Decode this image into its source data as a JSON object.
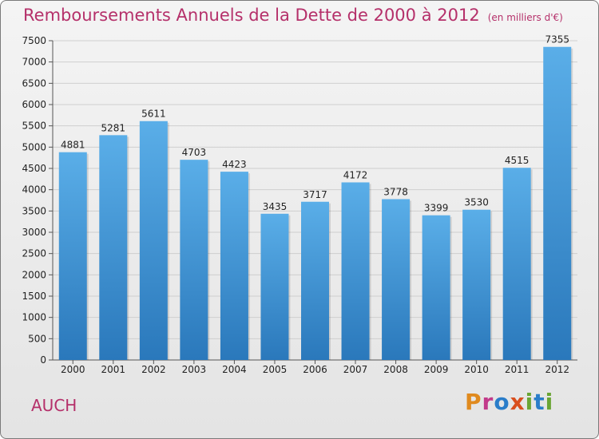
{
  "header": {
    "title": "Remboursements Annuels de la Dette de 2000 à 2012",
    "unit": "(en milliers d'€)"
  },
  "footer": {
    "city": "AUCH",
    "brand": "Proxiti",
    "brand_colors": [
      "#e08a1e",
      "#c23a8a",
      "#2a7dc9",
      "#d94f1e",
      "#6aa534",
      "#2a7dc9",
      "#6aa534"
    ]
  },
  "colors": {
    "bar_top": "#5aaee8",
    "bar_bottom": "#2a78bb",
    "title": "#b5306a"
  },
  "chart_data": {
    "type": "bar",
    "categories": [
      "2000",
      "2001",
      "2002",
      "2003",
      "2004",
      "2005",
      "2006",
      "2007",
      "2008",
      "2009",
      "2010",
      "2011",
      "2012"
    ],
    "values": [
      4881,
      5281,
      5611,
      4703,
      4423,
      3435,
      3717,
      4172,
      3778,
      3399,
      3530,
      4515,
      7355
    ],
    "ylim": [
      0,
      7500
    ],
    "yticks": [
      0,
      500,
      1000,
      1500,
      2000,
      2500,
      3000,
      3500,
      4000,
      4500,
      5000,
      5500,
      6000,
      6500,
      7000,
      7500
    ],
    "grid": true,
    "legend": "none"
  }
}
